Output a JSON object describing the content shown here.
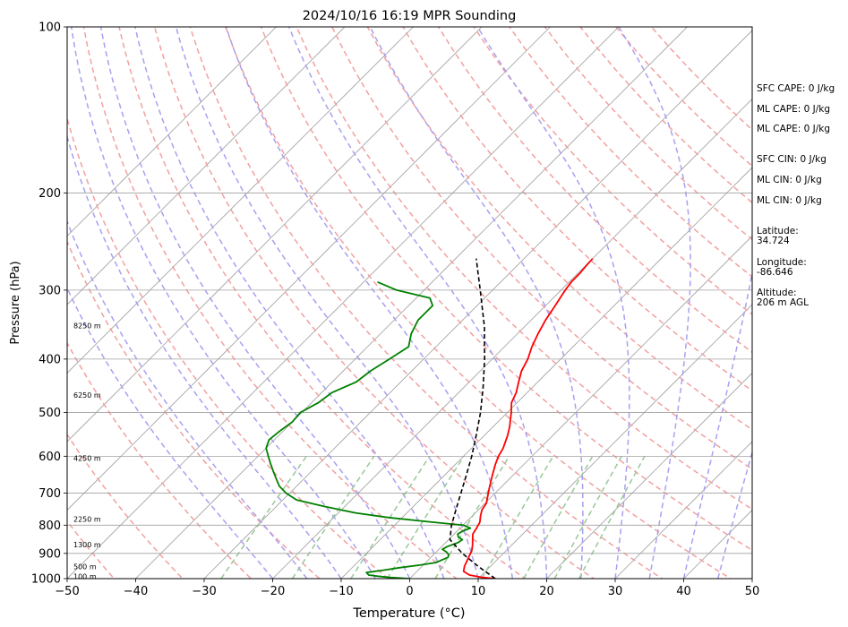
{
  "chart_data": {
    "type": "line",
    "title": "2024/10/16 16:19 MPR Sounding",
    "xlabel": "Temperature (°C)",
    "ylabel": "Pressure (hPa)",
    "xlim": [
      -50,
      50
    ],
    "ylim": [
      1000,
      100
    ],
    "y_scale": "log",
    "x_ticks": [
      "−50",
      "−40",
      "−30",
      "−20",
      "−10",
      "0",
      "10",
      "20",
      "30",
      "40",
      "50"
    ],
    "y_ticks": [
      "100",
      "200",
      "300",
      "400",
      "500",
      "600",
      "700",
      "800",
      "900",
      "1000"
    ],
    "grid": "horizontal isobars",
    "series": [
      {
        "color": "#ff0000",
        "pressure": [
          1000,
          995,
          985,
          970,
          950,
          930,
          910,
          890,
          870,
          850,
          830,
          810,
          790,
          770,
          750,
          730,
          700,
          680,
          650,
          620,
          600,
          580,
          550,
          530,
          510,
          500,
          480,
          460,
          440,
          420,
          400,
          380,
          360,
          340,
          320,
          300,
          290,
          280,
          270,
          263
        ],
        "temperature": [
          12.5,
          10.5,
          8.2,
          6.8,
          6.2,
          5.8,
          5.4,
          5.0,
          4.3,
          3.5,
          2.7,
          2.4,
          2.0,
          1.2,
          0.5,
          0.2,
          -1.0,
          -1.8,
          -3.0,
          -4.2,
          -4.9,
          -5.4,
          -6.6,
          -7.6,
          -8.8,
          -9.4,
          -10.8,
          -11.6,
          -12.8,
          -14.0,
          -14.8,
          -16.0,
          -17.0,
          -17.9,
          -18.6,
          -19.4,
          -19.7,
          -19.7,
          -19.9,
          -20.0
        ]
      },
      {
        "color": "#008000",
        "pressure": [
          1000,
          995,
          990,
          985,
          975,
          965,
          955,
          945,
          935,
          925,
          915,
          905,
          895,
          885,
          875,
          860,
          850,
          840,
          830,
          820,
          810,
          800,
          790,
          775,
          760,
          740,
          720,
          700,
          680,
          660,
          640,
          620,
          600,
          580,
          560,
          540,
          520,
          500,
          480,
          460,
          440,
          420,
          400,
          380,
          360,
          340,
          320,
          310,
          300,
          290
        ],
        "dewpoint": [
          0.0,
          -3.0,
          -5.0,
          -6.5,
          -7.2,
          -5.0,
          -3.0,
          -0.5,
          1.5,
          2.0,
          2.5,
          2.2,
          1.5,
          0.5,
          0.8,
          1.8,
          2.0,
          1.0,
          0.5,
          0.8,
          1.5,
          0.0,
          -5.0,
          -12.0,
          -17.5,
          -23.0,
          -28.0,
          -30.5,
          -32.5,
          -34.0,
          -35.5,
          -37.0,
          -38.5,
          -40.0,
          -40.8,
          -40.5,
          -40.0,
          -40.2,
          -39.0,
          -38.5,
          -36.5,
          -36.0,
          -35.0,
          -34.0,
          -35.5,
          -36.5,
          -36.5,
          -38.0,
          -44.0,
          -48.0
        ]
      },
      {
        "color": "#000000",
        "style": "dashed",
        "pressure": [
          1000,
          950,
          900,
          850,
          800,
          750,
          700,
          650,
          600,
          550,
          500,
          450,
          400,
          350,
          300,
          263
        ],
        "temperature": [
          12.5,
          8.2,
          4.0,
          0.2,
          -1.7,
          -3.3,
          -5.0,
          -6.8,
          -8.8,
          -11.2,
          -13.9,
          -17.2,
          -21.1,
          -25.8,
          -31.8,
          -37.0
        ]
      }
    ],
    "height_labels": [
      {
        "text": "100 m",
        "pressure": 990
      },
      {
        "text": "500 m",
        "pressure": 950
      },
      {
        "text": "1300 m",
        "pressure": 868
      },
      {
        "text": "2250 m",
        "pressure": 780
      },
      {
        "text": "4250 m",
        "pressure": 605
      },
      {
        "text": "6250 m",
        "pressure": 465
      },
      {
        "text": "8250 m",
        "pressure": 348
      }
    ],
    "background_lines": {
      "isotherms_deg_c": [
        -100,
        -90,
        -80,
        -70,
        -60,
        -50,
        -40,
        -30,
        -20,
        -10,
        0,
        10,
        20,
        30,
        40,
        50,
        60
      ],
      "dry_adiabats_theta_k": [
        230,
        240,
        250,
        260,
        270,
        280,
        290,
        300,
        310,
        320,
        330,
        340,
        350,
        360,
        370,
        380,
        390,
        400,
        410,
        420,
        430,
        440
      ],
      "moist_adiabats_t0_deg_c": [
        -20,
        -15,
        -10,
        -5,
        0,
        5,
        10,
        15,
        20,
        25,
        30,
        35,
        40,
        45
      ],
      "mixing_ratio_g_per_kg": [
        0.4,
        1,
        2,
        3,
        5,
        8,
        12,
        16,
        20
      ]
    }
  },
  "annotations": [
    {
      "text": "SFC CAPE: 0 J/kg"
    },
    {
      "text": "ML CAPE: 0 J/kg"
    },
    {
      "text": "ML CAPE: 0 J/kg"
    },
    {
      "text": "SFC CIN: 0 J/kg"
    },
    {
      "text": "ML CIN: 0 J/kg"
    },
    {
      "text": "ML CIN: 0 J/kg"
    },
    {
      "text": "Latitude:\n34.724"
    },
    {
      "text": "Longitude:\n-86.646"
    },
    {
      "text": "Altitude:\n206 m AGL"
    }
  ],
  "colors": {
    "temperature": "#ff0000",
    "dewpoint": "#008000",
    "parcel": "#000000",
    "dry_adiabat": "#f2a0a0",
    "moist_adiabat": "#a8a0f0",
    "mixing_ratio": "#98c898",
    "isotherm": "#a0a0a0"
  }
}
